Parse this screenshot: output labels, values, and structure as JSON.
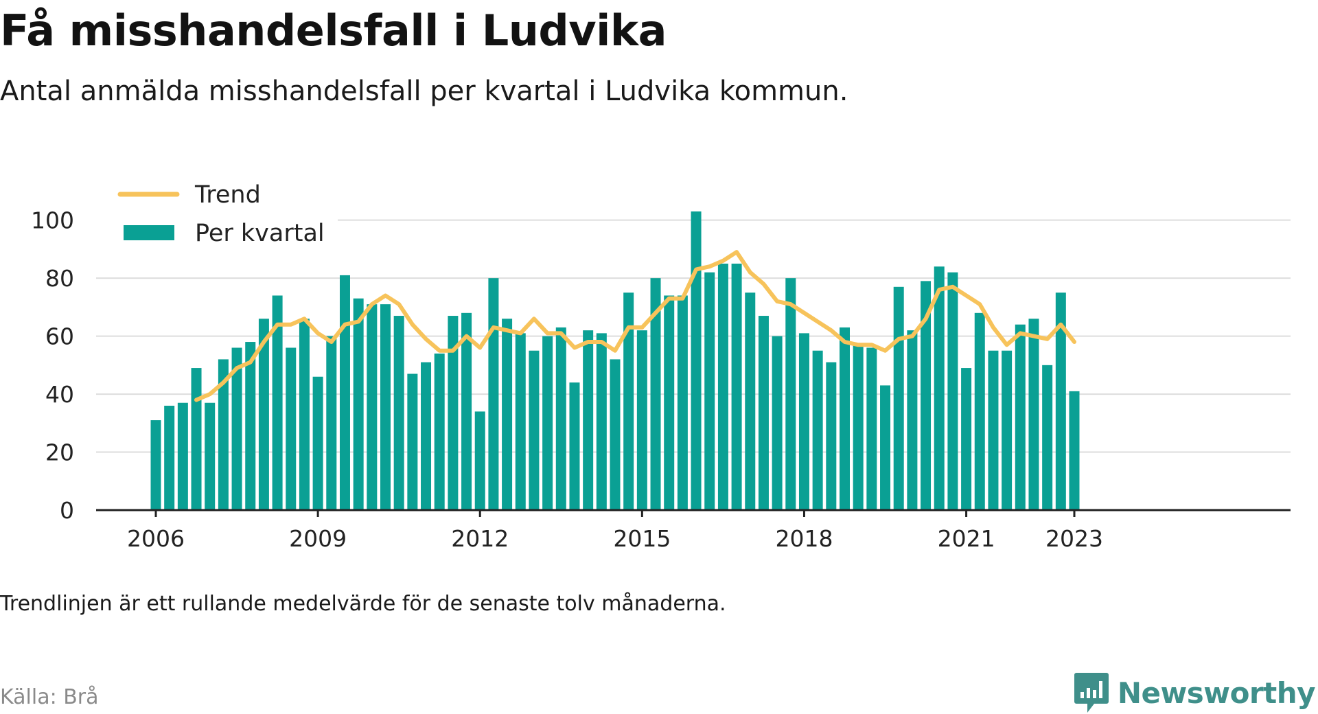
{
  "header": {
    "title": "Få misshandelsfall i Ludvika",
    "subtitle": "Antal anmälda misshandelsfall per kvartal i Ludvika kommun."
  },
  "footer": {
    "note": "Trendlinjen är ett rullande medelvärde för de senaste tolv månaderna.",
    "source": "Källa: Brå",
    "brand": "Newsworthy",
    "brand_icon": "newsworthy-logo-icon"
  },
  "colors": {
    "bars": "#0aa094",
    "trend": "#f7c35b",
    "grid": "#dddddd",
    "axis": "#222222",
    "brand": "#3f8f8a"
  },
  "chart_data": {
    "type": "bar",
    "x_ticks": [
      "2006",
      "2009",
      "2012",
      "2015",
      "2018",
      "2021",
      "2023"
    ],
    "y_ticks": [
      0,
      20,
      40,
      60,
      80,
      100
    ],
    "ylim": [
      0,
      103
    ],
    "grid": true,
    "legend_position": "top-left",
    "categories": [
      "2006 Q1",
      "2006 Q2",
      "2006 Q3",
      "2006 Q4",
      "2007 Q1",
      "2007 Q2",
      "2007 Q3",
      "2007 Q4",
      "2008 Q1",
      "2008 Q2",
      "2008 Q3",
      "2008 Q4",
      "2009 Q1",
      "2009 Q2",
      "2009 Q3",
      "2009 Q4",
      "2010 Q1",
      "2010 Q2",
      "2010 Q3",
      "2010 Q4",
      "2011 Q1",
      "2011 Q2",
      "2011 Q3",
      "2011 Q4",
      "2012 Q1",
      "2012 Q2",
      "2012 Q3",
      "2012 Q4",
      "2013 Q1",
      "2013 Q2",
      "2013 Q3",
      "2013 Q4",
      "2014 Q1",
      "2014 Q2",
      "2014 Q3",
      "2014 Q4",
      "2015 Q1",
      "2015 Q2",
      "2015 Q3",
      "2015 Q4",
      "2016 Q1",
      "2016 Q2",
      "2016 Q3",
      "2016 Q4",
      "2017 Q1",
      "2017 Q2",
      "2017 Q3",
      "2017 Q4",
      "2018 Q1",
      "2018 Q2",
      "2018 Q3",
      "2018 Q4",
      "2019 Q1",
      "2019 Q2",
      "2019 Q3",
      "2019 Q4",
      "2020 Q1",
      "2020 Q2",
      "2020 Q3",
      "2020 Q4",
      "2021 Q1",
      "2021 Q2",
      "2021 Q3",
      "2021 Q4",
      "2022 Q1",
      "2022 Q2",
      "2022 Q3",
      "2022 Q4",
      "2023 Q1"
    ],
    "series": [
      {
        "name": "Per kvartal",
        "kind": "bar",
        "values": [
          31,
          36,
          37,
          49,
          37,
          52,
          56,
          58,
          66,
          74,
          56,
          66,
          46,
          60,
          81,
          73,
          71,
          71,
          67,
          47,
          51,
          54,
          67,
          68,
          34,
          80,
          66,
          61,
          55,
          60,
          63,
          44,
          62,
          61,
          52,
          75,
          62,
          80,
          74,
          74,
          103,
          82,
          85,
          85,
          75,
          67,
          60,
          80,
          61,
          55,
          51,
          63,
          57,
          56,
          43,
          77,
          62,
          79,
          84,
          82,
          49,
          68,
          55,
          55,
          64,
          66,
          50,
          75,
          41
        ]
      },
      {
        "name": "Trend",
        "kind": "line",
        "values": [
          null,
          null,
          null,
          38,
          40,
          44,
          49,
          51,
          58,
          64,
          64,
          66,
          61,
          58,
          64,
          65,
          71,
          74,
          71,
          64,
          59,
          55,
          55,
          60,
          56,
          63,
          62,
          61,
          66,
          61,
          61,
          56,
          58,
          58,
          55,
          63,
          63,
          68,
          73,
          73,
          83,
          84,
          86,
          89,
          82,
          78,
          72,
          71,
          68,
          65,
          62,
          58,
          57,
          57,
          55,
          59,
          60,
          66,
          76,
          77,
          74,
          71,
          63,
          57,
          61,
          60,
          59,
          64,
          58
        ]
      }
    ]
  }
}
